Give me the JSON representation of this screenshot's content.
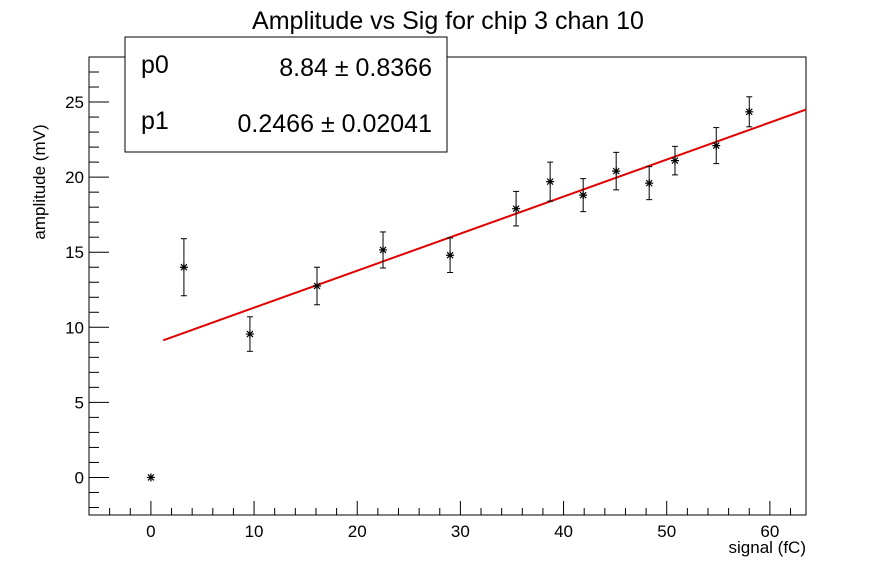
{
  "chart_data": {
    "type": "scatter",
    "title": "Amplitude vs Sig for chip 3 chan 10",
    "xlabel": "signal (fC)",
    "ylabel": "amplitude (mV)",
    "xlim": [
      -6,
      63.5
    ],
    "ylim": [
      -2.5,
      28
    ],
    "x_ticks": [
      0,
      10,
      20,
      30,
      40,
      50,
      60
    ],
    "y_ticks": [
      0,
      5,
      10,
      15,
      20,
      25
    ],
    "grid": false,
    "points": [
      {
        "x": 0,
        "y": 0,
        "err": 0
      },
      {
        "x": 3.2,
        "y": 14.0,
        "err": 1.9
      },
      {
        "x": 9.6,
        "y": 9.55,
        "err": 1.15
      },
      {
        "x": 16.1,
        "y": 12.75,
        "err": 1.25
      },
      {
        "x": 22.5,
        "y": 15.15,
        "err": 1.2
      },
      {
        "x": 29.0,
        "y": 14.8,
        "err": 1.15
      },
      {
        "x": 35.4,
        "y": 17.9,
        "err": 1.15
      },
      {
        "x": 38.7,
        "y": 19.7,
        "err": 1.3
      },
      {
        "x": 41.9,
        "y": 18.8,
        "err": 1.1
      },
      {
        "x": 45.1,
        "y": 20.4,
        "err": 1.25
      },
      {
        "x": 48.3,
        "y": 19.6,
        "err": 1.1
      },
      {
        "x": 50.8,
        "y": 21.1,
        "err": 0.95
      },
      {
        "x": 54.8,
        "y": 22.1,
        "err": 1.2
      },
      {
        "x": 58.0,
        "y": 24.35,
        "err": 1.0
      }
    ],
    "fit": {
      "type": "linear",
      "p0": 8.84,
      "p1": 0.2466,
      "x_range": [
        1.2,
        63.5
      ],
      "color": "#e00000"
    },
    "stats": [
      {
        "name": "p0",
        "value": "8.84",
        "error": "0.8366"
      },
      {
        "name": "p1",
        "value": "0.2466",
        "error": "0.02041"
      }
    ],
    "stats_pm": "±"
  }
}
